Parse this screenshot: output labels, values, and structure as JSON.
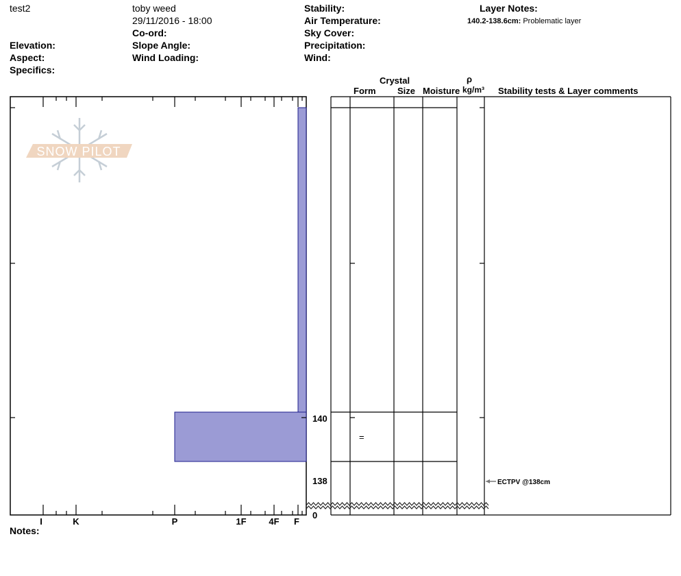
{
  "header": {
    "name": "test2",
    "observer": "toby weed",
    "datetime": "29/11/2016 - 18:00",
    "coord_label": "Co-ord:",
    "elevation_label": "Elevation:",
    "aspect_label": "Aspect:",
    "specifics_label": "Specifics:",
    "slope_angle_label": "Slope Angle:",
    "wind_loading_label": "Wind Loading:",
    "stability_label": "Stability:",
    "air_temp_label": "Air Temperature:",
    "sky_cover_label": "Sky Cover:",
    "precipitation_label": "Precipitation:",
    "wind_label": "Wind:",
    "layer_notes_label": "Layer Notes:",
    "layer_note_range": "140.2-138.6cm:",
    "layer_note_text": "Problematic layer"
  },
  "table_headers": {
    "crystal": "Crystal",
    "form": "Form",
    "size": "Size",
    "moisture": "Moisture",
    "rho": "ρ",
    "density_unit": "kg/m³",
    "comments": "Stability tests & Layer comments"
  },
  "hardness_axis": [
    "I",
    "K",
    "P",
    "1F",
    "4F",
    "F"
  ],
  "depth_labels": [
    "140",
    "138",
    "0"
  ],
  "layers": [
    {
      "top_cm": 150,
      "bottom_cm": 140.2,
      "hardness": "F",
      "form": ""
    },
    {
      "top_cm": 140.2,
      "bottom_cm": 138.6,
      "hardness": "P",
      "form": "="
    }
  ],
  "stability_test": "ECTPV @138cm",
  "notes_label": "Notes:",
  "logo_text": "SNOW PILOT",
  "colors": {
    "layer_fill": "#9b9bd5",
    "layer_stroke": "#1c1c8c",
    "logo_band": "#f0d6c0",
    "logo_flake": "#c5ced6"
  }
}
